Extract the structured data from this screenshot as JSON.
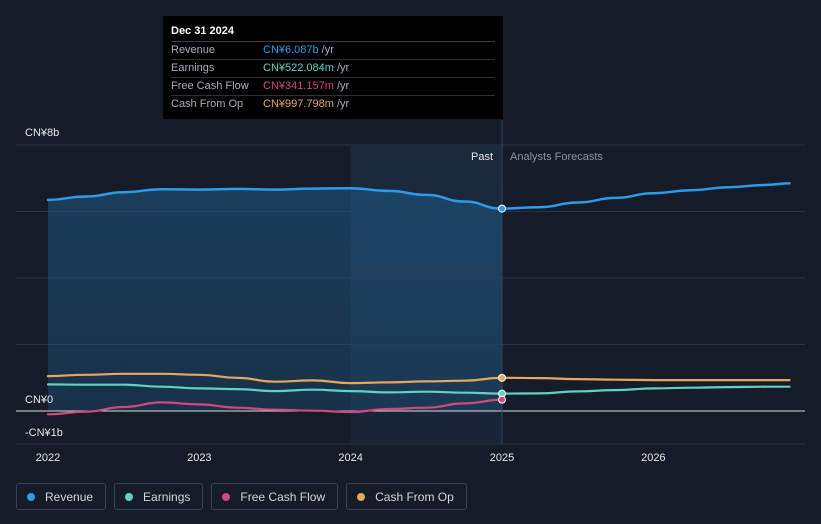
{
  "chart_data": {
    "type": "line",
    "x_axis": {
      "ticks": [
        "2022",
        "2023",
        "2024",
        "2025",
        "2026"
      ],
      "range": [
        2021.9,
        2026.9
      ]
    },
    "y_axis": {
      "labels": {
        "top": "CN¥8b",
        "zero": "CN¥0",
        "bottom": "-CN¥1b"
      },
      "range": [
        -1,
        8
      ]
    },
    "divider_labels": {
      "past": "Past",
      "forecast": "Analysts Forecasts"
    },
    "divider_x": 2025.0,
    "highlight_start_x": 2024.0,
    "series": [
      {
        "name": "Revenue",
        "color": "#2d9bea",
        "fill": true,
        "points": [
          [
            2022.0,
            6.35
          ],
          [
            2022.25,
            6.45
          ],
          [
            2022.5,
            6.58
          ],
          [
            2022.75,
            6.67
          ],
          [
            2023.0,
            6.66
          ],
          [
            2023.25,
            6.68
          ],
          [
            2023.5,
            6.66
          ],
          [
            2023.75,
            6.69
          ],
          [
            2024.0,
            6.7
          ],
          [
            2024.25,
            6.62
          ],
          [
            2024.5,
            6.5
          ],
          [
            2024.75,
            6.3
          ],
          [
            2025.0,
            6.087
          ],
          [
            2025.25,
            6.13
          ],
          [
            2025.5,
            6.27
          ],
          [
            2025.75,
            6.41
          ],
          [
            2026.0,
            6.55
          ],
          [
            2026.25,
            6.64
          ],
          [
            2026.5,
            6.73
          ],
          [
            2026.75,
            6.8
          ],
          [
            2026.9,
            6.85
          ]
        ]
      },
      {
        "name": "Earnings",
        "color": "#5ed3c3",
        "fill": false,
        "points": [
          [
            2022.0,
            0.8
          ],
          [
            2022.25,
            0.79
          ],
          [
            2022.5,
            0.79
          ],
          [
            2022.75,
            0.73
          ],
          [
            2023.0,
            0.68
          ],
          [
            2023.25,
            0.66
          ],
          [
            2023.5,
            0.6
          ],
          [
            2023.75,
            0.64
          ],
          [
            2024.0,
            0.6
          ],
          [
            2024.25,
            0.56
          ],
          [
            2024.5,
            0.58
          ],
          [
            2024.75,
            0.55
          ],
          [
            2025.0,
            0.522
          ],
          [
            2025.25,
            0.53
          ],
          [
            2025.5,
            0.59
          ],
          [
            2025.75,
            0.63
          ],
          [
            2026.0,
            0.68
          ],
          [
            2026.25,
            0.7
          ],
          [
            2026.5,
            0.72
          ],
          [
            2026.75,
            0.73
          ],
          [
            2026.9,
            0.73
          ]
        ]
      },
      {
        "name": "Free Cash Flow",
        "color": "#d1487c",
        "fill": false,
        "points": [
          [
            2022.0,
            -0.1
          ],
          [
            2022.25,
            -0.02
          ],
          [
            2022.5,
            0.12
          ],
          [
            2022.75,
            0.26
          ],
          [
            2023.0,
            0.2
          ],
          [
            2023.25,
            0.1
          ],
          [
            2023.5,
            0.04
          ],
          [
            2023.75,
            0.01
          ],
          [
            2024.0,
            -0.03
          ],
          [
            2024.25,
            0.06
          ],
          [
            2024.5,
            0.1
          ],
          [
            2024.75,
            0.23
          ],
          [
            2025.0,
            0.341
          ]
        ]
      },
      {
        "name": "Cash From Op",
        "color": "#e8a85c",
        "fill": false,
        "points": [
          [
            2022.0,
            1.05
          ],
          [
            2022.25,
            1.09
          ],
          [
            2022.5,
            1.12
          ],
          [
            2022.75,
            1.12
          ],
          [
            2023.0,
            1.09
          ],
          [
            2023.25,
            1.0
          ],
          [
            2023.5,
            0.88
          ],
          [
            2023.75,
            0.92
          ],
          [
            2024.0,
            0.84
          ],
          [
            2024.25,
            0.86
          ],
          [
            2024.5,
            0.89
          ],
          [
            2024.75,
            0.91
          ],
          [
            2025.0,
            0.998
          ],
          [
            2025.25,
            0.99
          ],
          [
            2025.5,
            0.96
          ],
          [
            2025.75,
            0.94
          ],
          [
            2026.0,
            0.93
          ],
          [
            2026.25,
            0.93
          ],
          [
            2026.5,
            0.93
          ],
          [
            2026.75,
            0.93
          ],
          [
            2026.9,
            0.93
          ]
        ]
      }
    ],
    "markers_at_x": 2025.0
  },
  "tooltip": {
    "date": "Dec 31 2024",
    "rows": [
      {
        "label": "Revenue",
        "value": "CN¥6.087b",
        "unit": "/yr",
        "color": "#2d9bea"
      },
      {
        "label": "Earnings",
        "value": "CN¥522.084m",
        "unit": "/yr",
        "color": "#5ed3c3"
      },
      {
        "label": "Free Cash Flow",
        "value": "CN¥341.157m",
        "unit": "/yr",
        "color": "#d1487c"
      },
      {
        "label": "Cash From Op",
        "value": "CN¥997.798m",
        "unit": "/yr",
        "color": "#e8a85c"
      }
    ]
  },
  "legend": [
    {
      "label": "Revenue",
      "color": "#2d9bea"
    },
    {
      "label": "Earnings",
      "color": "#5ed3c3"
    },
    {
      "label": "Free Cash Flow",
      "color": "#d1487c"
    },
    {
      "label": "Cash From Op",
      "color": "#e8a85c"
    }
  ]
}
